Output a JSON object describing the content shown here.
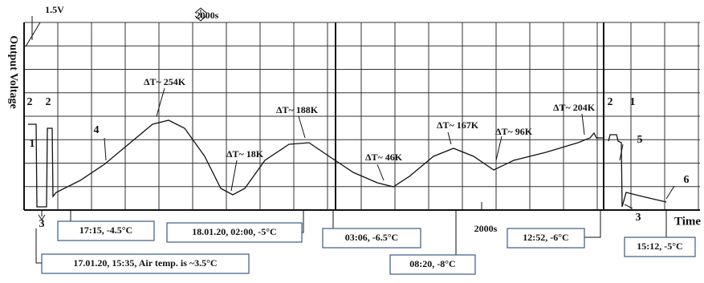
{
  "chart_data": {
    "type": "strip-chart",
    "y_label": "Output Voltage",
    "x_label": "Time",
    "scale_labels": [
      "1.5V",
      "2000s",
      "2000s"
    ],
    "peak_labels": [
      "ΔT~ 254K",
      "ΔT~ 188K",
      "ΔT~ 18K",
      "ΔT~ 46K",
      "ΔT~ 167K",
      "ΔT~ 96K",
      "ΔT~ 204K"
    ],
    "stage_labels": [
      "2",
      "2",
      "1",
      "3",
      "4",
      "2",
      "1",
      "5",
      "3",
      "6"
    ],
    "time_boxes": [
      "17.01.20, 15:35, Air temp. is ~3.5°C",
      "17:15, -4.5°C",
      "18.01.20, 02:00, -5°C",
      "03:06, -6.5°C",
      "08:20, -8°C",
      "12:52, -6°C",
      "15:12, -5°C"
    ]
  }
}
